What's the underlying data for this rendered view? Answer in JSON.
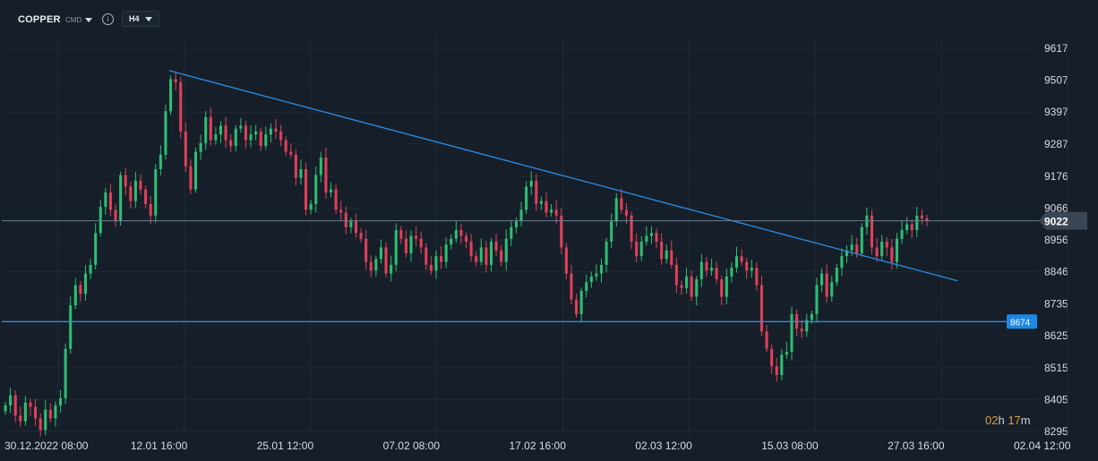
{
  "header": {
    "symbol": "COPPER",
    "instrument_type": "CMD",
    "info_icon": "info-circle-icon",
    "timeframe": "H4"
  },
  "countdown": {
    "hours": "02",
    "hours_unit": "h",
    "minutes": "17",
    "minutes_unit": "m"
  },
  "colors": {
    "background": "#161f29",
    "grid": "#1f2a36",
    "bull": "#2fbd72",
    "bear": "#e0405a",
    "trendline": "#2a8ee6",
    "current_price_tag": "#3a4653",
    "support_tag": "#1e88e5"
  },
  "chart_data": {
    "type": "candlestick",
    "title": "",
    "xlabel": "",
    "ylabel": "",
    "y_ticks": [
      "9617",
      "9507",
      "9397",
      "9287",
      "9176",
      "9066",
      "8956",
      "8846",
      "8735",
      "8625",
      "8515",
      "8405",
      "8295"
    ],
    "x_ticks": [
      "30.12.2022  08:00",
      "12.01  16:00",
      "25.01  12:00",
      "07.02  08:00",
      "17.02  16:00",
      "02.03  12:00",
      "15.03  08:00",
      "27.03  16:00",
      "02.04  12:00"
    ],
    "ylim": [
      8295,
      9617
    ],
    "grid": true,
    "current_price": {
      "value": "9022"
    },
    "support_level": {
      "value": "8674"
    },
    "trendline": {
      "from_price": 9540,
      "to_price": 8815
    },
    "closes": [
      8385,
      8420,
      8350,
      8330,
      8395,
      8380,
      8340,
      8300,
      8370,
      8340,
      8385,
      8410,
      8580,
      8730,
      8800,
      8770,
      8840,
      8870,
      8980,
      9070,
      9120,
      9060,
      9020,
      9180,
      9140,
      9090,
      9160,
      9130,
      9080,
      9040,
      9200,
      9250,
      9400,
      9510,
      9500,
      9330,
      9210,
      9130,
      9260,
      9290,
      9380,
      9300,
      9320,
      9350,
      9300,
      9280,
      9340,
      9350,
      9300,
      9320,
      9330,
      9280,
      9320,
      9340,
      9330,
      9300,
      9260,
      9250,
      9170,
      9200,
      9060,
      9080,
      9180,
      9240,
      9120,
      9130,
      9060,
      9050,
      9000,
      9020,
      8980,
      8960,
      8880,
      8850,
      8890,
      8930,
      8840,
      8870,
      8990,
      8960,
      8910,
      8970,
      8960,
      8930,
      8870,
      8850,
      8900,
      8880,
      8940,
      8960,
      8990,
      8970,
      8950,
      8900,
      8880,
      8930,
      8870,
      8950,
      8920,
      8880,
      8960,
      9000,
      9020,
      9060,
      9140,
      9160,
      9080,
      9090,
      9050,
      9060,
      9040,
      8930,
      8840,
      8750,
      8700,
      8780,
      8810,
      8830,
      8840,
      8870,
      8950,
      9020,
      9100,
      9060,
      9040,
      8950,
      8900,
      8950,
      8970,
      8980,
      8950,
      8890,
      8920,
      8870,
      8800,
      8790,
      8830,
      8760,
      8820,
      8880,
      8850,
      8860,
      8820,
      8760,
      8830,
      8860,
      8900,
      8880,
      8850,
      8860,
      8800,
      8640,
      8580,
      8520,
      8490,
      8560,
      8570,
      8700,
      8650,
      8640,
      8680,
      8700,
      8800,
      8840,
      8760,
      8810,
      8860,
      8900,
      8920,
      8940,
      8910,
      9000,
      9040,
      8930,
      8900,
      8950,
      8930,
      8880,
      8960,
      8990,
      9010,
      8990,
      9040,
      9030,
      9020
    ]
  }
}
